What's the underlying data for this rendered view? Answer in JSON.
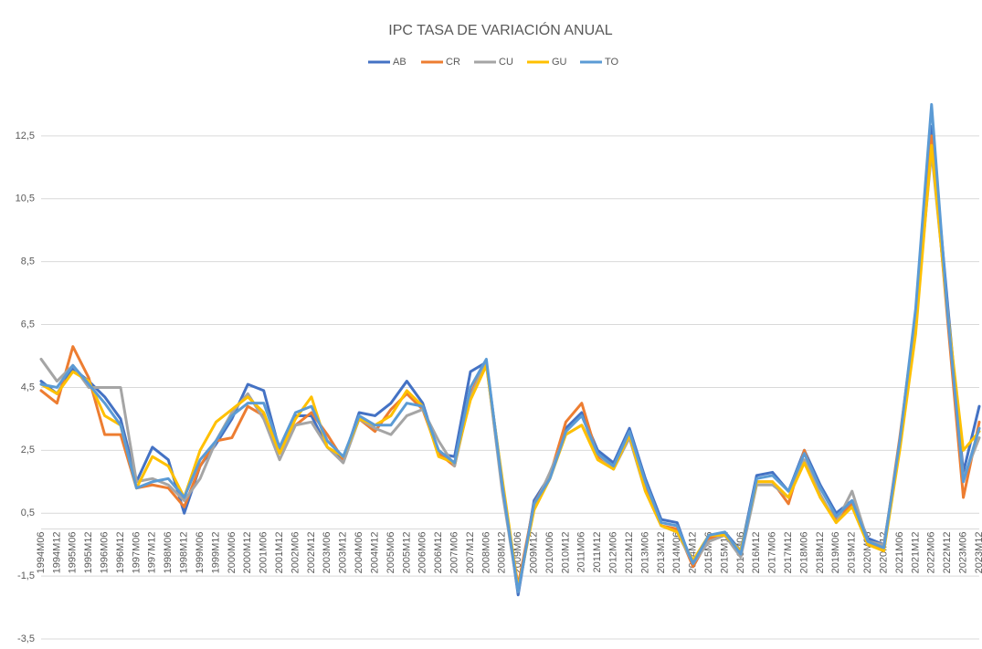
{
  "chart_data": {
    "type": "line",
    "title": "IPC TASA DE VARIACIÓN ANUAL",
    "categories": [
      "1994M06",
      "1994M12",
      "1995M06",
      "1995M12",
      "1996M06",
      "1996M12",
      "1997M06",
      "1997M12",
      "1998M06",
      "1998M12",
      "1999M06",
      "1999M12",
      "2000M06",
      "2000M12",
      "2001M06",
      "2001M12",
      "2002M06",
      "2002M12",
      "2003M06",
      "2003M12",
      "2004M06",
      "2004M12",
      "2005M06",
      "2005M12",
      "2006M06",
      "2006M12",
      "2007M06",
      "2007M12",
      "2008M06",
      "2008M12",
      "2009M06",
      "2009M12",
      "2010M06",
      "2010M12",
      "2011M06",
      "2011M12",
      "2012M06",
      "2012M12",
      "2013M06",
      "2013M12",
      "2014M06",
      "2014M12",
      "2015M06",
      "2015M12",
      "2016M06",
      "2016M12",
      "2017M06",
      "2017M12",
      "2018M06",
      "2018M12",
      "2019M06",
      "2019M12",
      "2020M06",
      "2020M12",
      "2021M06",
      "2021M12",
      "2022M06",
      "2022M12",
      "2023M06",
      "2023M12"
    ],
    "series": [
      {
        "name": "AB",
        "color": "#4472c4",
        "values": [
          4.7,
          4.3,
          5.1,
          4.7,
          4.2,
          3.5,
          1.5,
          2.6,
          2.2,
          0.5,
          2.0,
          2.7,
          3.5,
          4.6,
          4.4,
          2.5,
          3.6,
          3.6,
          2.6,
          2.2,
          3.7,
          3.6,
          4.0,
          4.7,
          4.0,
          2.4,
          2.3,
          5.0,
          5.3,
          1.5,
          -2.1,
          0.9,
          1.7,
          3.2,
          3.7,
          2.5,
          2.1,
          3.2,
          1.6,
          0.3,
          0.2,
          -1.2,
          -0.3,
          -0.1,
          -0.7,
          1.7,
          1.8,
          1.2,
          2.5,
          1.4,
          0.5,
          0.9,
          -0.3,
          -0.5,
          2.6,
          6.5,
          12.8,
          7.2,
          1.8,
          3.9
        ]
      },
      {
        "name": "CR",
        "color": "#ed7d31",
        "values": [
          4.4,
          4.0,
          5.8,
          4.8,
          3.0,
          3.0,
          1.3,
          1.4,
          1.3,
          0.7,
          2.0,
          2.8,
          2.9,
          3.9,
          3.6,
          2.6,
          3.3,
          3.7,
          3.0,
          2.2,
          3.5,
          3.1,
          3.8,
          4.3,
          3.8,
          2.4,
          2.0,
          4.3,
          5.3,
          1.3,
          -1.8,
          0.8,
          1.7,
          3.4,
          4.0,
          2.3,
          2.0,
          2.9,
          1.3,
          0.1,
          0.0,
          -1.2,
          -0.3,
          -0.2,
          -0.8,
          1.5,
          1.5,
          0.8,
          2.5,
          1.0,
          0.3,
          0.8,
          -0.5,
          -0.6,
          2.9,
          6.8,
          12.5,
          6.7,
          1.0,
          3.4
        ]
      },
      {
        "name": "CU",
        "color": "#a5a5a5",
        "values": [
          5.4,
          4.7,
          5.2,
          4.5,
          4.5,
          4.5,
          1.5,
          1.6,
          1.4,
          0.9,
          1.6,
          2.8,
          3.7,
          4.3,
          3.5,
          2.2,
          3.3,
          3.4,
          2.6,
          2.1,
          3.5,
          3.2,
          3.0,
          3.6,
          3.8,
          2.8,
          2.0,
          4.2,
          5.3,
          1.2,
          -2.0,
          0.7,
          1.8,
          3.0,
          3.3,
          2.4,
          1.9,
          2.9,
          1.2,
          0.1,
          -0.1,
          -1.1,
          -0.4,
          -0.2,
          -0.9,
          1.4,
          1.4,
          1.0,
          2.2,
          1.1,
          0.2,
          1.2,
          -0.4,
          -0.5,
          2.7,
          6.6,
          12.0,
          7.0,
          1.6,
          2.9
        ]
      },
      {
        "name": "GU",
        "color": "#ffc000",
        "values": [
          4.6,
          4.3,
          5.0,
          4.7,
          3.6,
          3.3,
          1.3,
          2.3,
          2.0,
          1.0,
          2.5,
          3.4,
          3.8,
          4.2,
          3.7,
          2.4,
          3.5,
          4.2,
          2.6,
          2.3,
          3.5,
          3.3,
          3.6,
          4.4,
          3.9,
          2.3,
          2.1,
          4.1,
          5.2,
          1.6,
          -1.9,
          0.6,
          1.6,
          3.0,
          3.3,
          2.2,
          1.9,
          3.0,
          1.2,
          0.1,
          -0.1,
          -1.0,
          -0.2,
          -0.2,
          -0.7,
          1.5,
          1.5,
          1.0,
          2.1,
          1.0,
          0.2,
          0.7,
          -0.5,
          -0.7,
          2.5,
          6.2,
          12.2,
          6.9,
          2.5,
          3.1
        ]
      },
      {
        "name": "TO",
        "color": "#5b9bd5",
        "values": [
          4.6,
          4.5,
          5.2,
          4.6,
          4.0,
          3.3,
          1.3,
          1.5,
          1.6,
          1.0,
          2.2,
          2.8,
          3.6,
          4.0,
          4.0,
          2.6,
          3.7,
          3.9,
          2.8,
          2.3,
          3.6,
          3.3,
          3.3,
          4.0,
          3.9,
          2.5,
          2.1,
          4.5,
          5.4,
          1.4,
          -2.0,
          0.8,
          1.6,
          3.1,
          3.6,
          2.4,
          2.0,
          3.1,
          1.5,
          0.2,
          0.1,
          -1.1,
          -0.2,
          -0.1,
          -0.8,
          1.6,
          1.7,
          1.2,
          2.4,
          1.3,
          0.4,
          0.9,
          -0.4,
          -0.6,
          2.8,
          7.0,
          13.5,
          6.9,
          1.5,
          3.2
        ]
      }
    ],
    "ylim": [
      -3.5,
      14.5
    ],
    "yticks": [
      {
        "value": -3.5,
        "label": "-3,5"
      },
      {
        "value": -1.5,
        "label": "-1,5"
      },
      {
        "value": 0.5,
        "label": "0,5"
      },
      {
        "value": 2.5,
        "label": "2,5"
      },
      {
        "value": 4.5,
        "label": "4,5"
      },
      {
        "value": 6.5,
        "label": "6,5"
      },
      {
        "value": 8.5,
        "label": "8,5"
      },
      {
        "value": 10.5,
        "label": "10,5"
      },
      {
        "value": 12.5,
        "label": "12,5"
      }
    ],
    "grid": true,
    "legend": "top"
  }
}
